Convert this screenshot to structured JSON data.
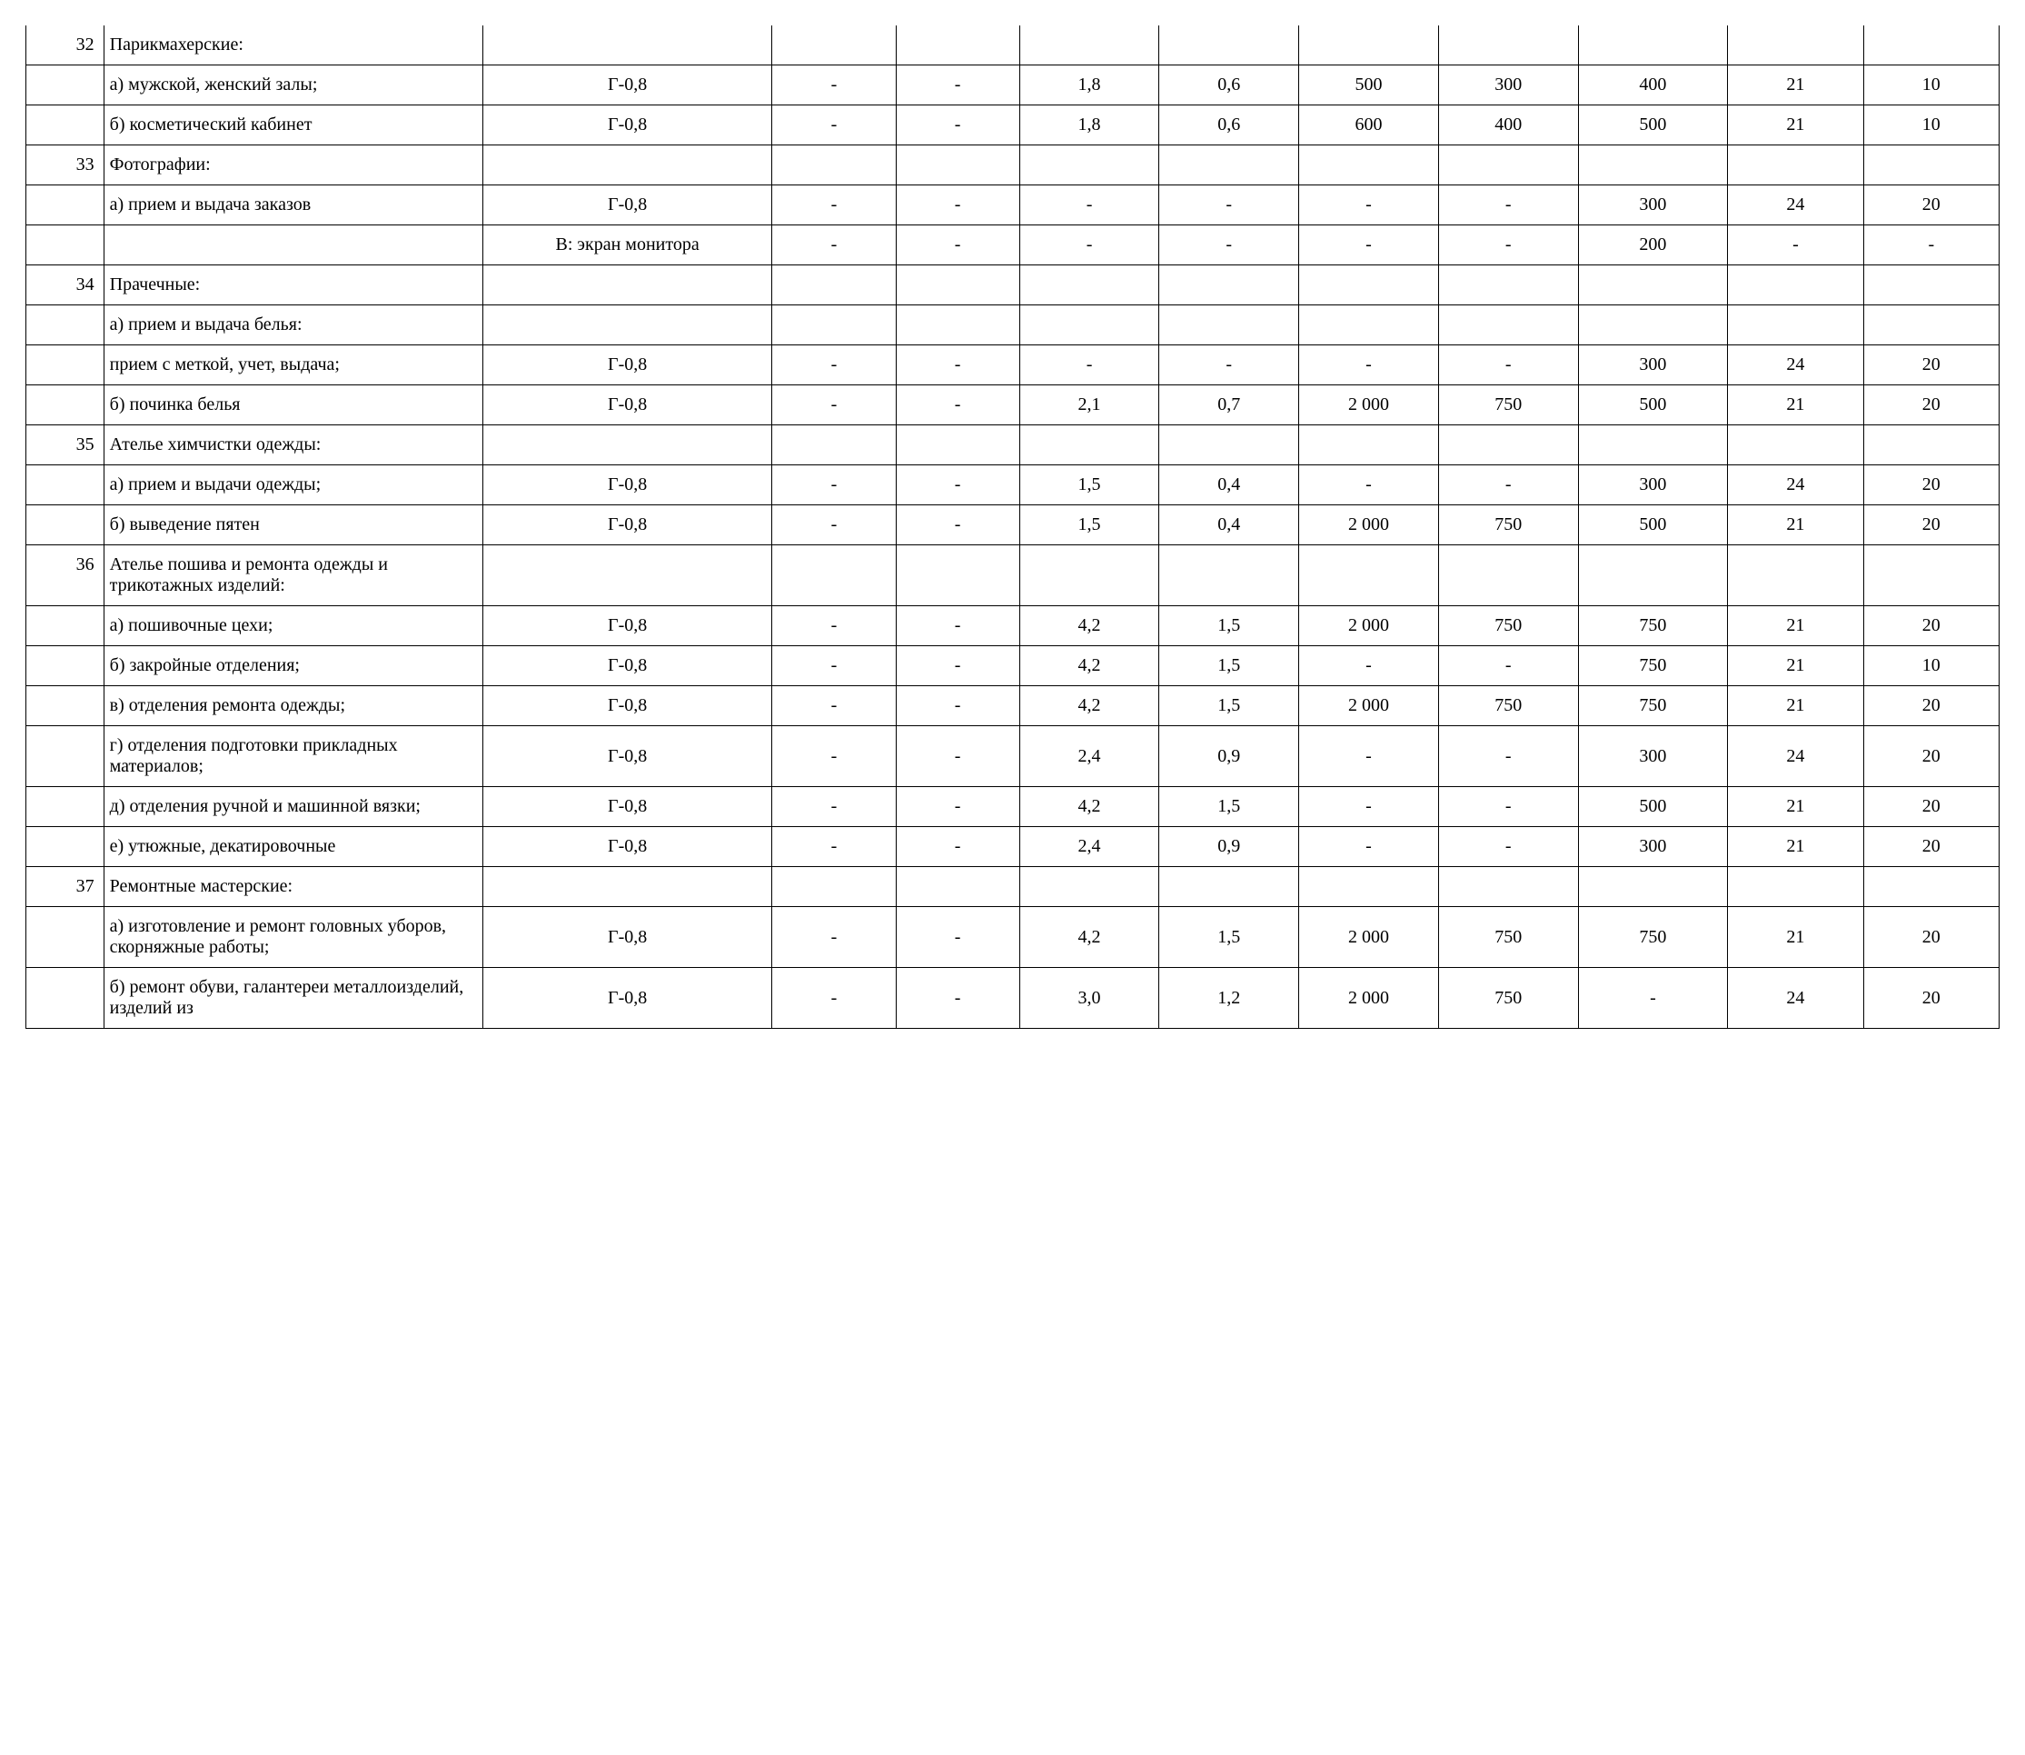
{
  "table": {
    "column_count": 12,
    "border_color": "#000000",
    "background_color": "#ffffff",
    "font_family": "Times New Roman",
    "font_size_pt": 15,
    "column_widths_pct": [
      3.9,
      19,
      14.5,
      6.2,
      6.2,
      7,
      7,
      7,
      7,
      7.5,
      6.8,
      6.8
    ],
    "column_align": [
      "right",
      "left",
      "center",
      "center",
      "center",
      "center",
      "center",
      "center",
      "center",
      "center",
      "center",
      "center"
    ],
    "rows": [
      {
        "border_top": false,
        "border_bottom": true,
        "cells": [
          "32",
          "Парикмахерские:",
          "",
          "",
          "",
          "",
          "",
          "",
          "",
          "",
          "",
          ""
        ]
      },
      {
        "border_top": true,
        "border_bottom": true,
        "cells": [
          "",
          "а) мужской, женский залы;",
          "Г-0,8",
          "-",
          "-",
          "1,8",
          "0,6",
          "500",
          "300",
          "400",
          "21",
          "10"
        ]
      },
      {
        "border_top": true,
        "border_bottom": true,
        "cells": [
          "",
          "б) косметический кабинет",
          "Г-0,8",
          "-",
          "-",
          "1,8",
          "0,6",
          "600",
          "400",
          "500",
          "21",
          "10"
        ]
      },
      {
        "border_top": true,
        "border_bottom": true,
        "cells": [
          "33",
          "Фотографии:",
          "",
          "",
          "",
          "",
          "",
          "",
          "",
          "",
          "",
          ""
        ]
      },
      {
        "border_top": true,
        "border_bottom": true,
        "cells": [
          "",
          "а) прием и выдача заказов",
          "Г-0,8",
          "-",
          "-",
          "-",
          "-",
          "-",
          "-",
          "300",
          "24",
          "20"
        ]
      },
      {
        "border_top": true,
        "border_bottom": true,
        "cells": [
          "",
          "",
          "В: экран монитора",
          "-",
          "-",
          "-",
          "-",
          "-",
          "-",
          "200",
          "-",
          "-"
        ]
      },
      {
        "border_top": true,
        "border_bottom": true,
        "cells": [
          "34",
          "Прачечные:",
          "",
          "",
          "",
          "",
          "",
          "",
          "",
          "",
          "",
          ""
        ]
      },
      {
        "border_top": true,
        "border_bottom": true,
        "cells": [
          "",
          "а) прием и выдача белья:",
          "",
          "",
          "",
          "",
          "",
          "",
          "",
          "",
          "",
          ""
        ]
      },
      {
        "border_top": true,
        "border_bottom": true,
        "cells": [
          "",
          "прием с меткой, учет, выдача;",
          "Г-0,8",
          "-",
          "-",
          "-",
          "-",
          "-",
          "-",
          "300",
          "24",
          "20"
        ]
      },
      {
        "border_top": true,
        "border_bottom": true,
        "cells": [
          "",
          "б) починка белья",
          "Г-0,8",
          "-",
          "-",
          "2,1",
          "0,7",
          "2 000",
          "750",
          "500",
          "21",
          "20"
        ]
      },
      {
        "border_top": true,
        "border_bottom": true,
        "cells": [
          "35",
          "Ателье химчистки одежды:",
          "",
          "",
          "",
          "",
          "",
          "",
          "",
          "",
          "",
          ""
        ]
      },
      {
        "border_top": true,
        "border_bottom": true,
        "cells": [
          "",
          "а) прием и выдачи одежды;",
          "Г-0,8",
          "-",
          "-",
          "1,5",
          "0,4",
          "-",
          "-",
          "300",
          "24",
          "20"
        ]
      },
      {
        "border_top": true,
        "border_bottom": true,
        "cells": [
          "",
          "б) выведение пятен",
          "Г-0,8",
          "-",
          "-",
          "1,5",
          "0,4",
          "2 000",
          "750",
          "500",
          "21",
          "20"
        ]
      },
      {
        "border_top": true,
        "border_bottom": true,
        "cells": [
          "36",
          "Ателье пошива и ремонта одежды и трикотажных изделий:",
          "",
          "",
          "",
          "",
          "",
          "",
          "",
          "",
          "",
          ""
        ]
      },
      {
        "border_top": true,
        "border_bottom": true,
        "cells": [
          "",
          "а) пошивочные цехи;",
          "Г-0,8",
          "-",
          "-",
          "4,2",
          "1,5",
          "2 000",
          "750",
          "750",
          "21",
          "20"
        ]
      },
      {
        "border_top": true,
        "border_bottom": true,
        "cells": [
          "",
          "б) закройные отделения;",
          "Г-0,8",
          "-",
          "-",
          "4,2",
          "1,5",
          "-",
          "-",
          "750",
          "21",
          "10"
        ]
      },
      {
        "border_top": true,
        "border_bottom": true,
        "cells": [
          "",
          "в) отделения ремонта одежды;",
          "Г-0,8",
          "-",
          "-",
          "4,2",
          "1,5",
          "2 000",
          "750",
          "750",
          "21",
          "20"
        ]
      },
      {
        "border_top": true,
        "border_bottom": true,
        "cells": [
          "",
          "г) отделения подготовки прикладных материалов;",
          "Г-0,8",
          "-",
          "-",
          "2,4",
          "0,9",
          "-",
          "-",
          "300",
          "24",
          "20"
        ]
      },
      {
        "border_top": true,
        "border_bottom": true,
        "cells": [
          "",
          "д) отделения ручной и машинной вязки;",
          "Г-0,8",
          "-",
          "-",
          "4,2",
          "1,5",
          "-",
          "-",
          "500",
          "21",
          "20"
        ]
      },
      {
        "border_top": true,
        "border_bottom": true,
        "cells": [
          "",
          "е) утюжные, декатировочные",
          "Г-0,8",
          "-",
          "-",
          "2,4",
          "0,9",
          "-",
          "-",
          "300",
          "21",
          "20"
        ]
      },
      {
        "border_top": true,
        "border_bottom": true,
        "cells": [
          "37",
          "Ремонтные мастерские:",
          "",
          "",
          "",
          "",
          "",
          "",
          "",
          "",
          "",
          ""
        ]
      },
      {
        "border_top": true,
        "border_bottom": true,
        "cells": [
          "",
          "а) изготовление и ремонт головных уборов, скорняжные работы;",
          "Г-0,8",
          "-",
          "-",
          "4,2",
          "1,5",
          "2 000",
          "750",
          "750",
          "21",
          "20"
        ]
      },
      {
        "border_top": true,
        "border_bottom": true,
        "cells": [
          "",
          "б) ремонт обуви, галантереи металлоизделий, изделий из",
          "Г-0,8",
          "-",
          "-",
          "3,0",
          "1,2",
          "2 000",
          "750",
          "-",
          "24",
          "20"
        ]
      }
    ]
  }
}
